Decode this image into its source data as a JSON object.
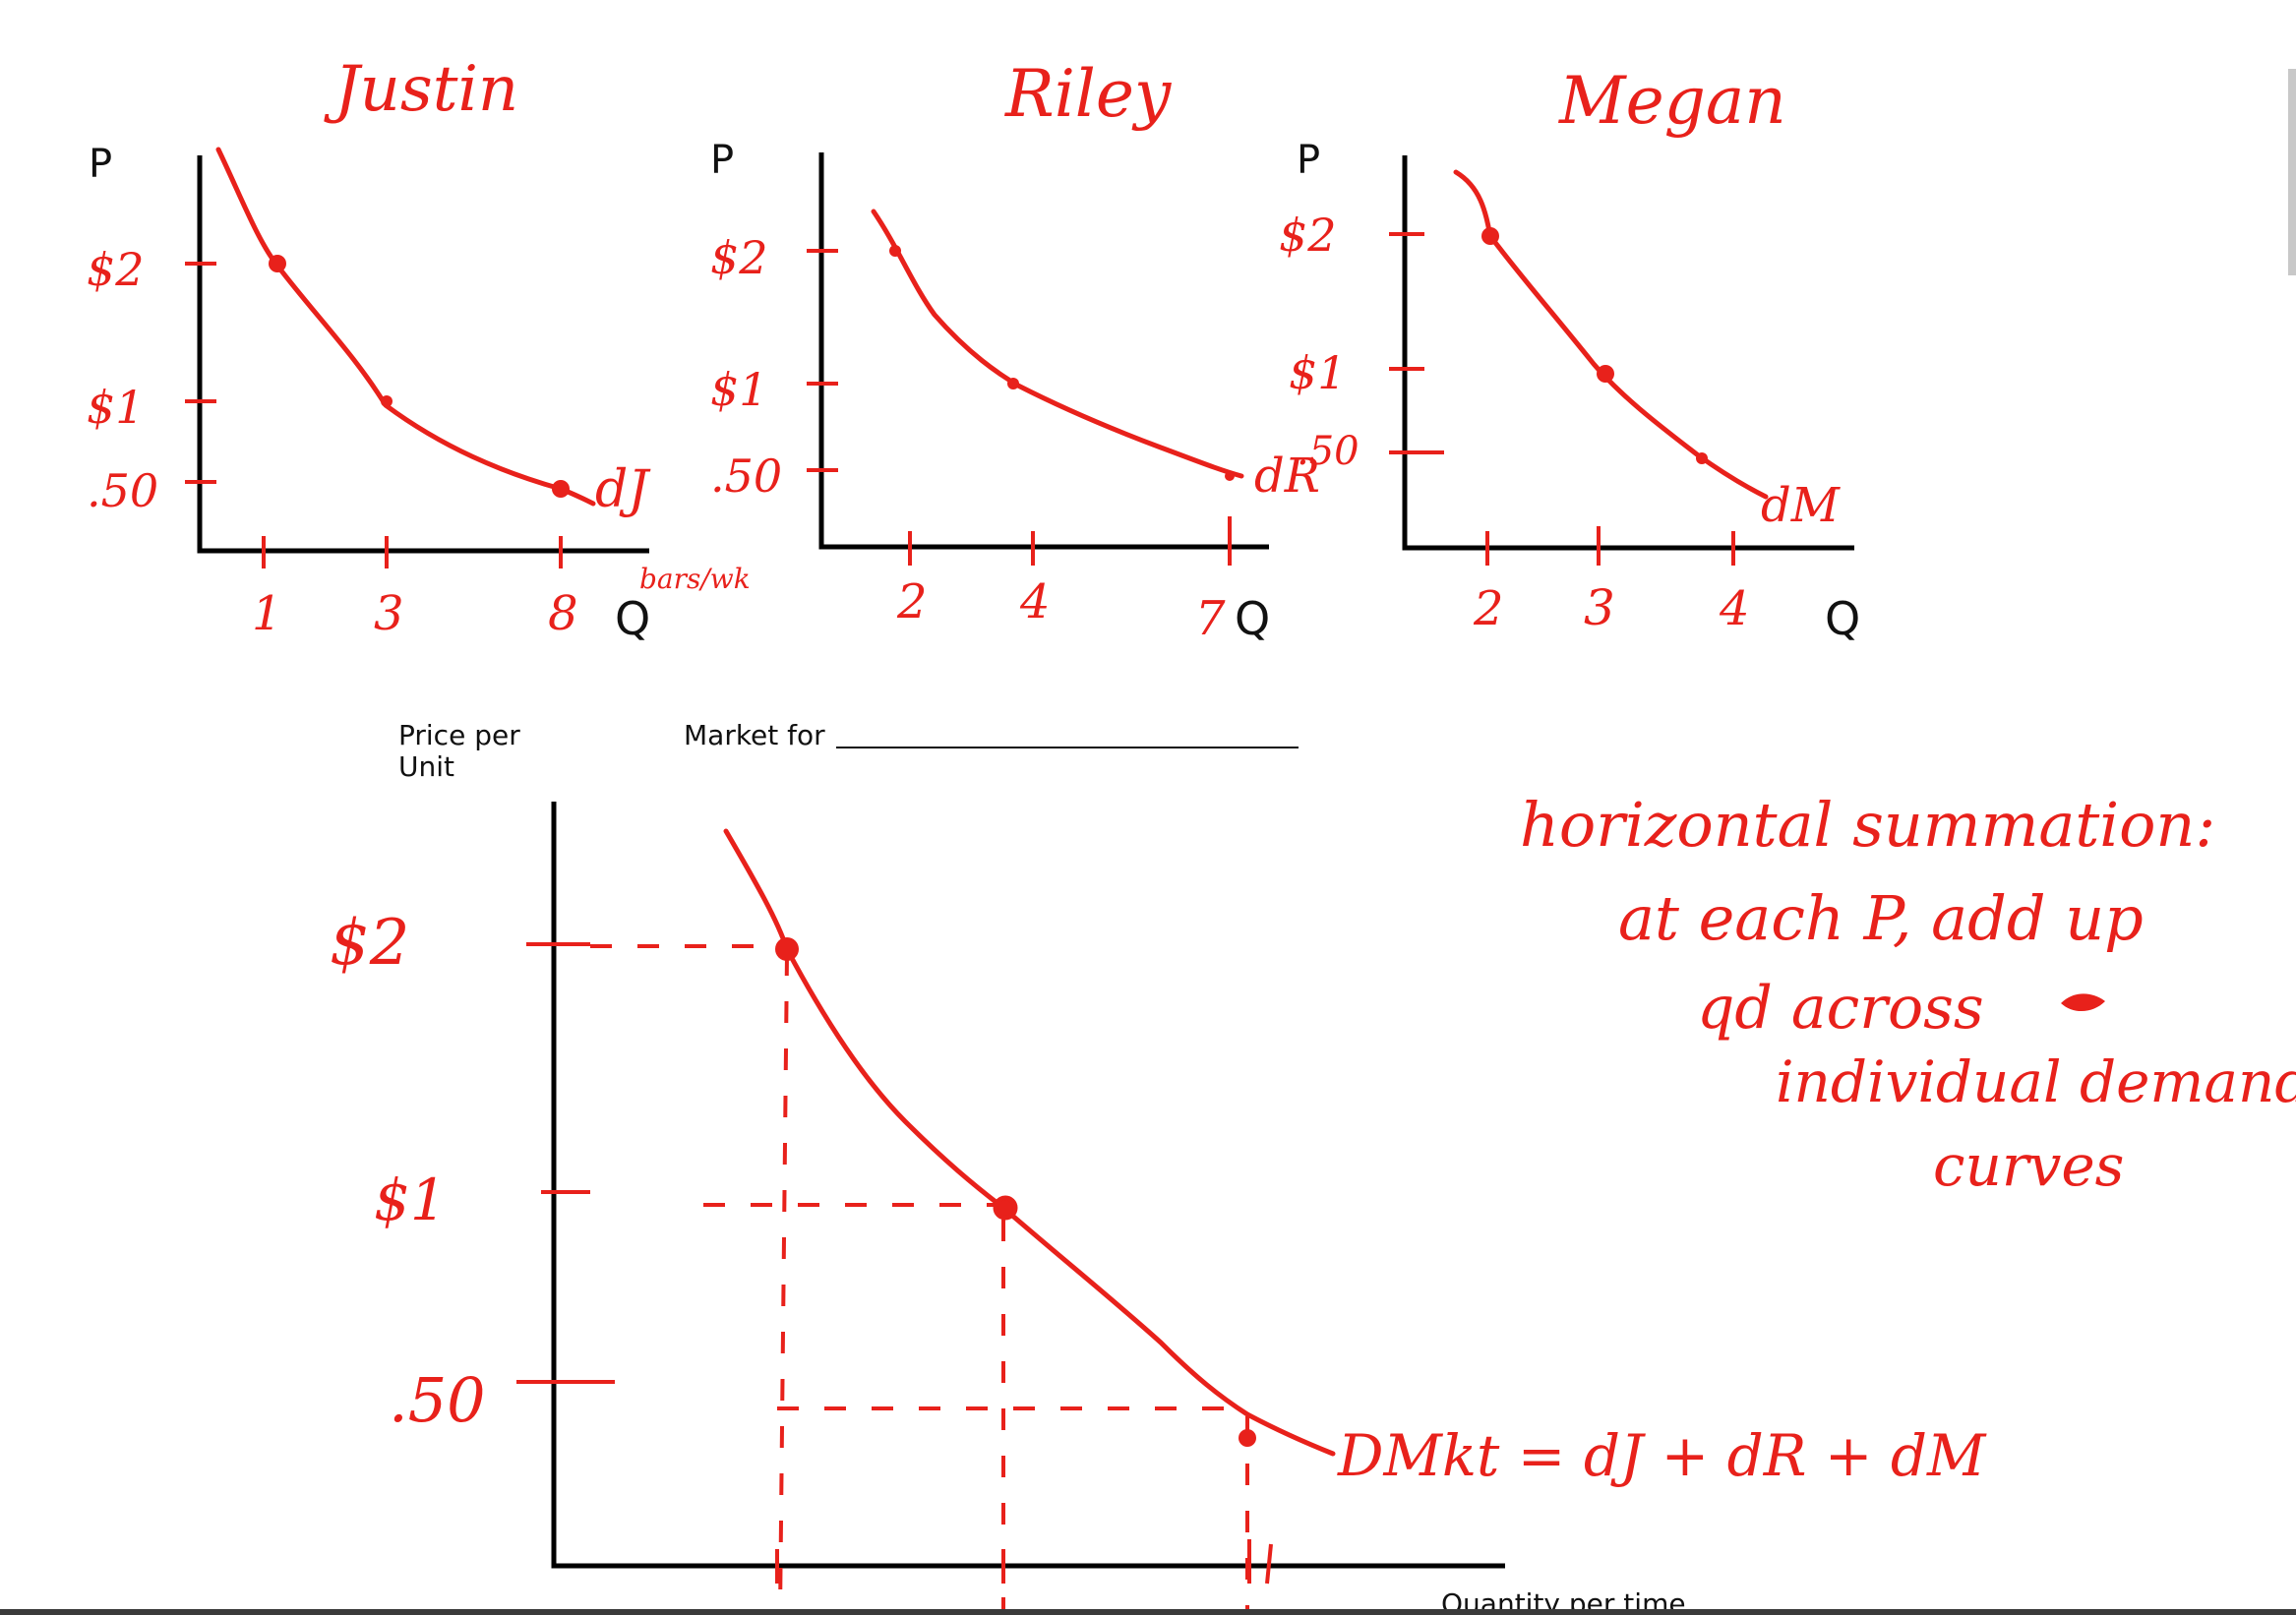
{
  "chart_data": [
    {
      "type": "line",
      "title": "Justin",
      "ylabel": "P",
      "xlabel": "Q",
      "x_ticks": [
        "1",
        "3",
        "8"
      ],
      "y_ticks": [
        "$2",
        "$1",
        ".50"
      ],
      "points": [
        [
          1,
          2
        ],
        [
          3,
          1
        ],
        [
          8,
          0.5
        ]
      ],
      "curve_label": "dJ",
      "note": "bars/wk",
      "xlim": [
        0,
        10
      ],
      "ylim": [
        0,
        2.6
      ]
    },
    {
      "type": "line",
      "title": "Riley",
      "ylabel": "P",
      "xlabel": "Q",
      "x_ticks": [
        "2",
        "4",
        "7"
      ],
      "y_ticks": [
        "$2",
        "$1",
        ".50"
      ],
      "points": [
        [
          2,
          2
        ],
        [
          4,
          1
        ],
        [
          7,
          0.5
        ]
      ],
      "curve_label": "dR",
      "xlim": [
        0,
        8.5
      ],
      "ylim": [
        0,
        2.6
      ]
    },
    {
      "type": "line",
      "title": "Megan",
      "ylabel": "P",
      "xlabel": "Q",
      "x_ticks": [
        "2",
        "3",
        "4"
      ],
      "y_ticks": [
        "$2",
        "$1",
        ".50"
      ],
      "points": [
        [
          2,
          2
        ],
        [
          3,
          1
        ],
        [
          4,
          0.5
        ]
      ],
      "curve_label": "dM",
      "xlim": [
        0,
        6.2
      ],
      "ylim": [
        0,
        2.6
      ]
    },
    {
      "type": "line",
      "title": "Market for",
      "ylabel": "Price per Unit",
      "xlabel": "Quantity per time",
      "y_ticks": [
        "$2",
        "$1",
        ".50"
      ],
      "points": [
        [
          5,
          2
        ],
        [
          10,
          1
        ],
        [
          19,
          0.5
        ]
      ],
      "curve_label": "DMkt = dJ + dR + dM",
      "xlim": [
        0,
        24
      ],
      "ylim": [
        0,
        2.6
      ]
    }
  ],
  "annotation": {
    "lines": [
      "horizontal summation:",
      "at each P, add up",
      "qd across",
      "individual demand",
      "curves"
    ]
  }
}
